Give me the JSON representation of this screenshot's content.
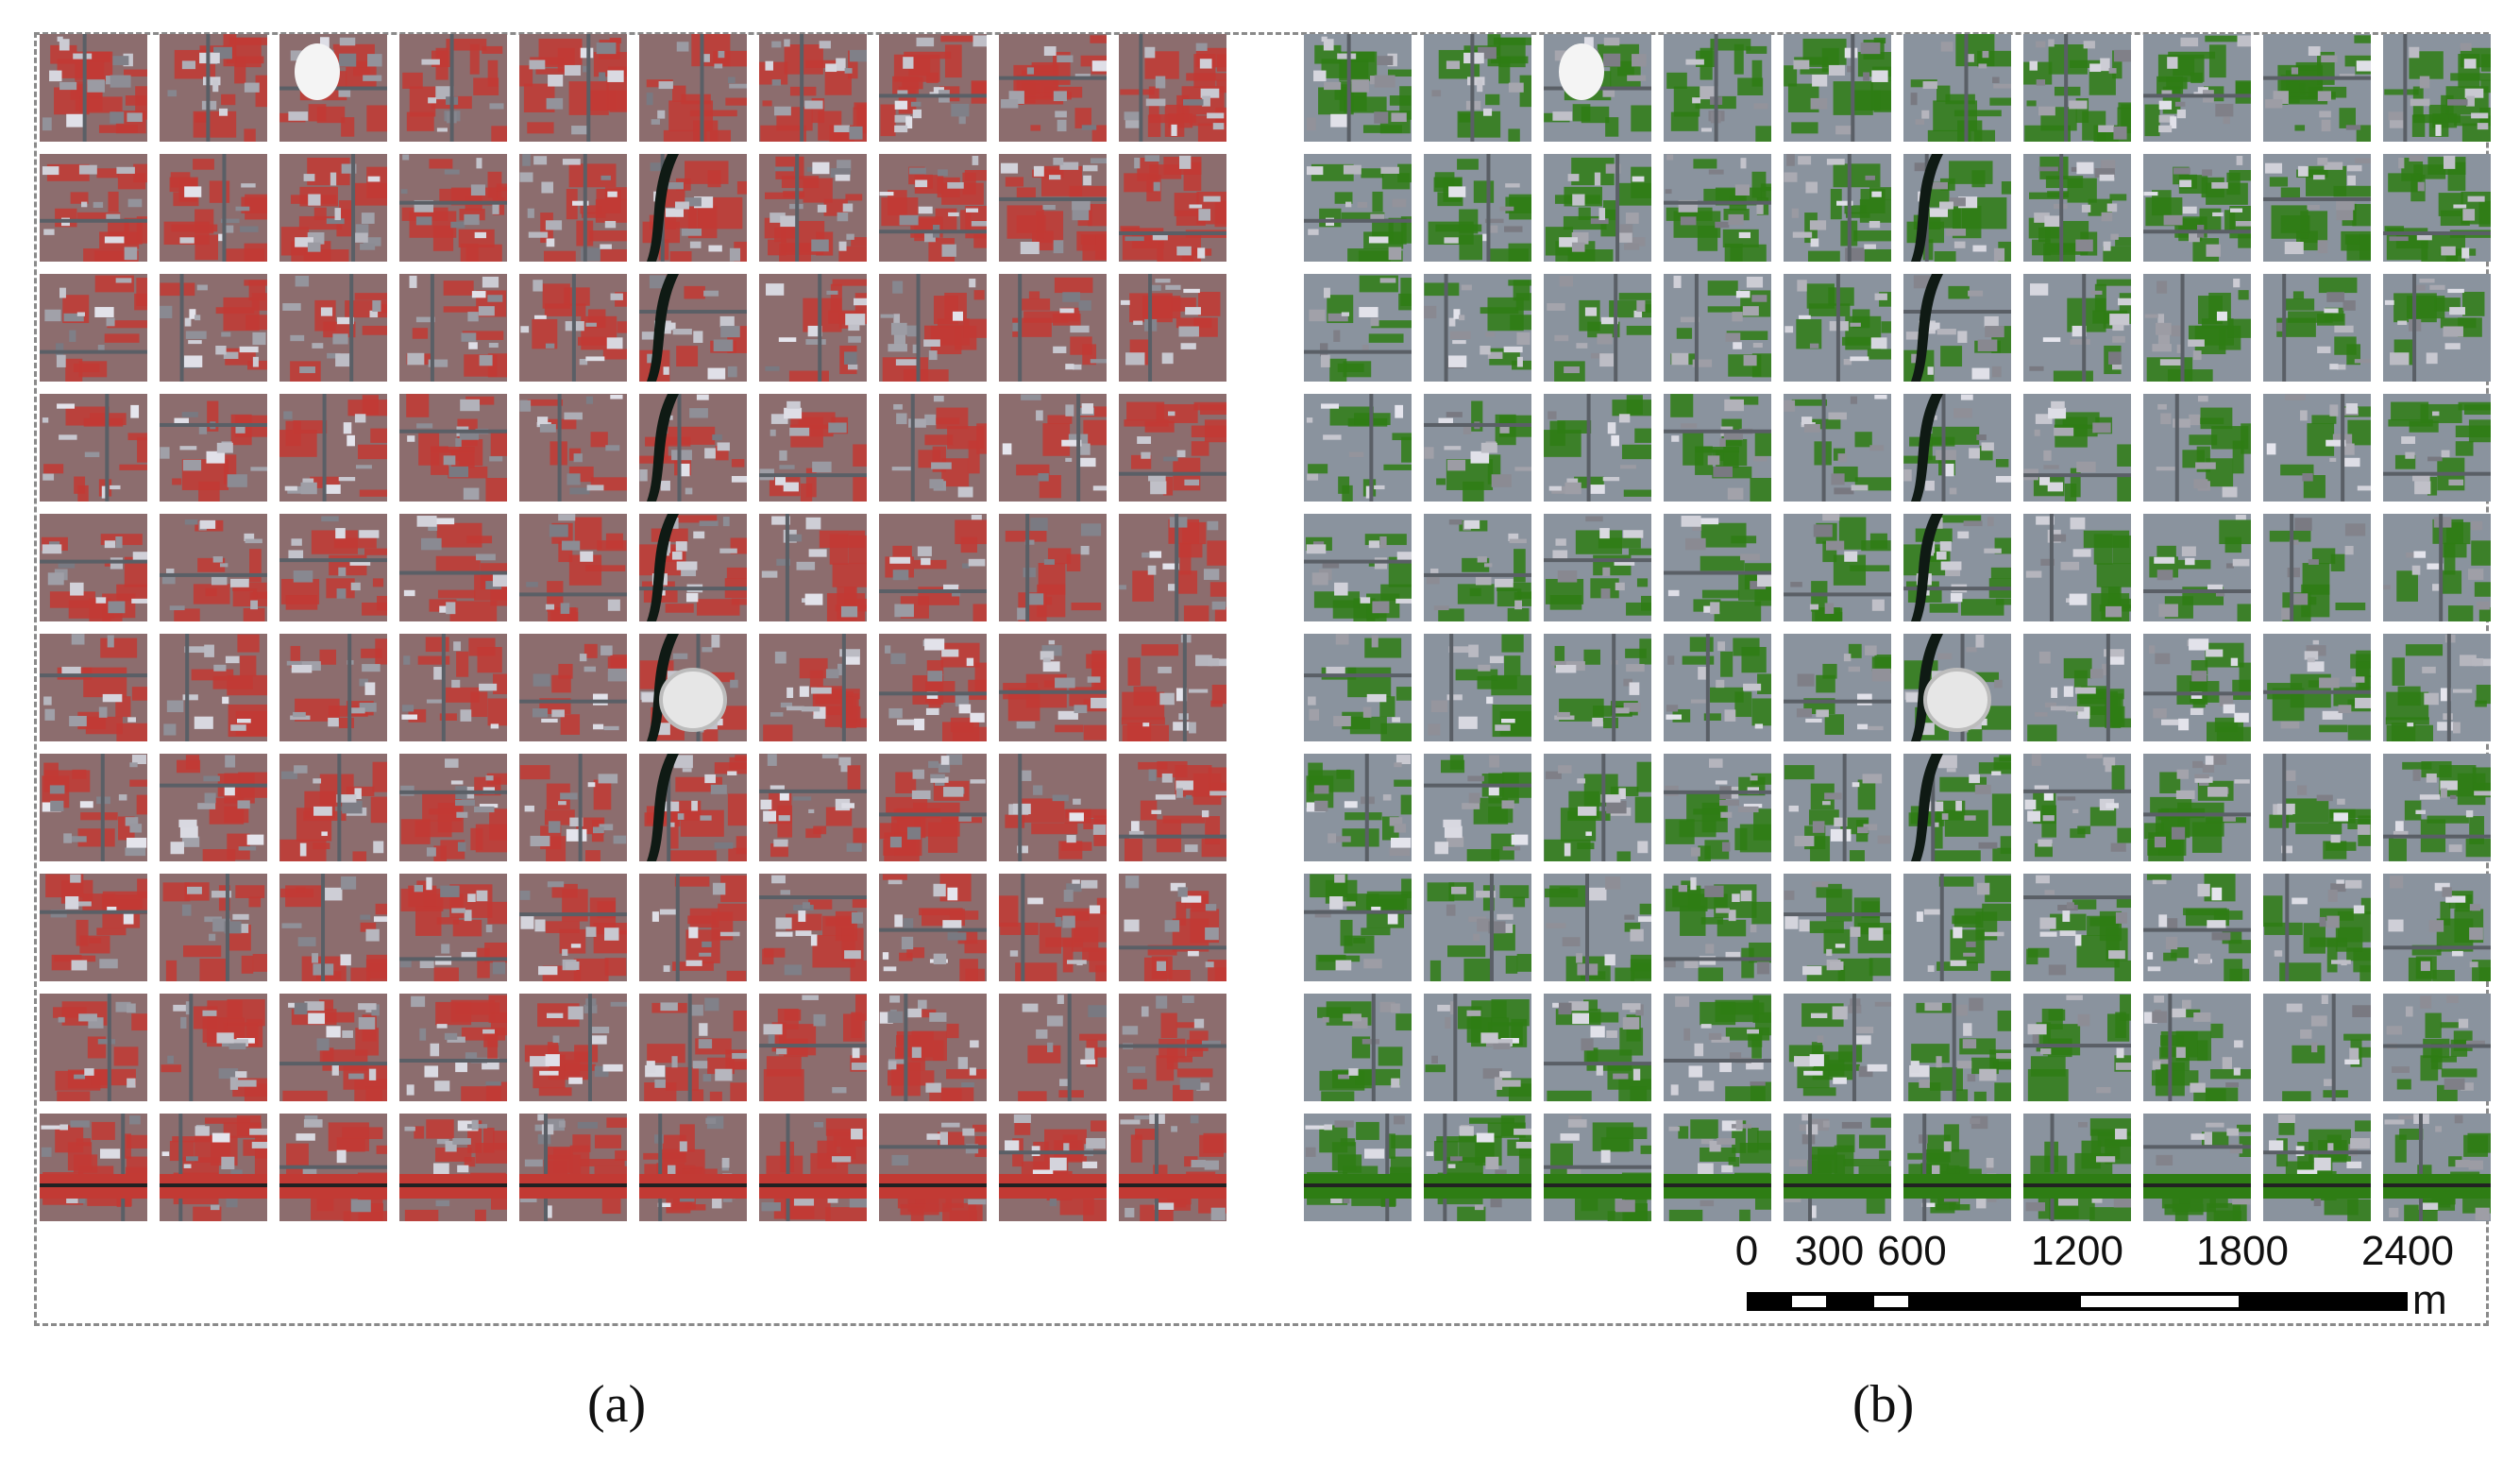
{
  "figure": {
    "panels": [
      {
        "id": "a",
        "label": "(a)",
        "rendering": "false-color infrared (red vegetation)",
        "grid": {
          "rows": 10,
          "cols": 10
        }
      },
      {
        "id": "b",
        "label": "(b)",
        "rendering": "true color with classified vegetation overlay (green)",
        "grid": {
          "rows": 10,
          "cols": 10
        }
      }
    ],
    "scale_bar": {
      "ticks": [
        "0",
        "300",
        "600",
        "1200",
        "1800",
        "2400"
      ],
      "tick_values": [
        0,
        300,
        600,
        1200,
        1800,
        2400
      ],
      "unit": "m"
    },
    "colors": {
      "vegetation_false_color": "#c23a34",
      "vegetation_overlay": "#2e7d14",
      "urban_gray": "#7c8794",
      "frame": "#8a8a8a"
    }
  }
}
